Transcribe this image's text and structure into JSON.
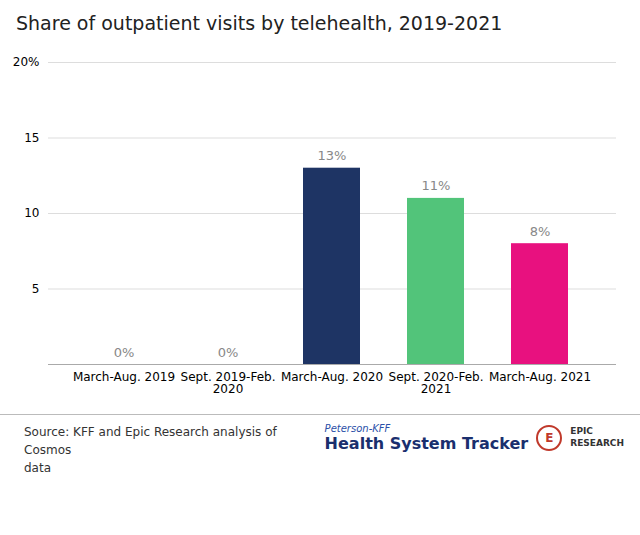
{
  "chart_data": {
    "type": "bar",
    "title": "Share of outpatient visits by telehealth, 2019-2021",
    "categories": [
      "March-Aug. 2019",
      "Sept. 2019-Feb.\n2020",
      "March-Aug. 2020",
      "Sept. 2020-Feb.\n2021",
      "March-Aug. 2021"
    ],
    "values": [
      0,
      0,
      13,
      11,
      8
    ],
    "value_labels": [
      "0%",
      "0%",
      "13%",
      "11%",
      "8%"
    ],
    "data_labels": true,
    "colors": [
      "#253768",
      "#253768",
      "#1e3464",
      "#52c47a",
      "#e8117f"
    ],
    "ylim": [
      0,
      20
    ],
    "yticks": [
      5,
      10,
      15,
      {
        "value": 20,
        "label": "20%"
      }
    ],
    "grid": true,
    "annotations": [
      "Source: KFF and Epic Research analysis of Cosmos\ndata",
      "Peterson-KFF",
      "Health System Tracker",
      "E",
      "EPIC\nRESEARCH"
    ]
  }
}
